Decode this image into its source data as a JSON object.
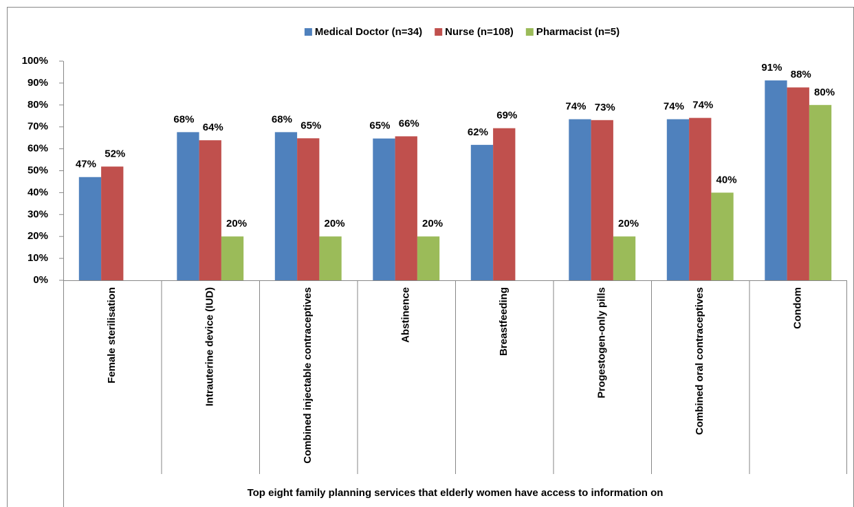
{
  "chart_data": {
    "type": "bar",
    "x_label": "Top eight family planning services that elderly women have access to information on",
    "categories": [
      "Female sterilisation",
      "Intrauterine device (IUD)",
      "Combined injectable contraceptives",
      "Abstinence",
      "Breastfeeding",
      "Progestogen-only pills",
      "Combined oral contraceptives",
      "Condom"
    ],
    "series": [
      {
        "name": "Medical Doctor (n=34)",
        "color": "#4f81bd",
        "values": [
          47.1,
          67.6,
          67.6,
          64.7,
          61.8,
          73.5,
          73.5,
          91.2
        ],
        "value_labels": [
          "47%",
          "68%",
          "68%",
          "65%",
          "62%",
          "74%",
          "74%",
          "91%"
        ]
      },
      {
        "name": "Nurse (n=108)",
        "color": "#c0504d",
        "values": [
          51.9,
          63.9,
          64.8,
          65.7,
          69.4,
          73.1,
          74.1,
          88.0
        ],
        "value_labels": [
          "52%",
          "64%",
          "65%",
          "66%",
          "69%",
          "73%",
          "74%",
          "88%"
        ]
      },
      {
        "name": "Pharmacist (n=5)",
        "color": "#9bbb59",
        "values": [
          null,
          20,
          20,
          20,
          null,
          20,
          40,
          80
        ],
        "value_labels": [
          null,
          "20%",
          "20%",
          "20%",
          null,
          "20%",
          "40%",
          "80%"
        ]
      }
    ],
    "ylim": [
      0,
      100
    ],
    "yticks": [
      {
        "value": 0,
        "label": "0%"
      },
      {
        "value": 10,
        "label": "10%"
      },
      {
        "value": 20,
        "label": "20%"
      },
      {
        "value": 30,
        "label": "30%"
      },
      {
        "value": 40,
        "label": "40%"
      },
      {
        "value": 50,
        "label": "50%"
      },
      {
        "value": 60,
        "label": "60%"
      },
      {
        "value": 70,
        "label": "70%"
      },
      {
        "value": 80,
        "label": "80%"
      },
      {
        "value": 90,
        "label": "90%"
      },
      {
        "value": 100,
        "label": "100%"
      }
    ],
    "legend": "top",
    "grid": false
  }
}
